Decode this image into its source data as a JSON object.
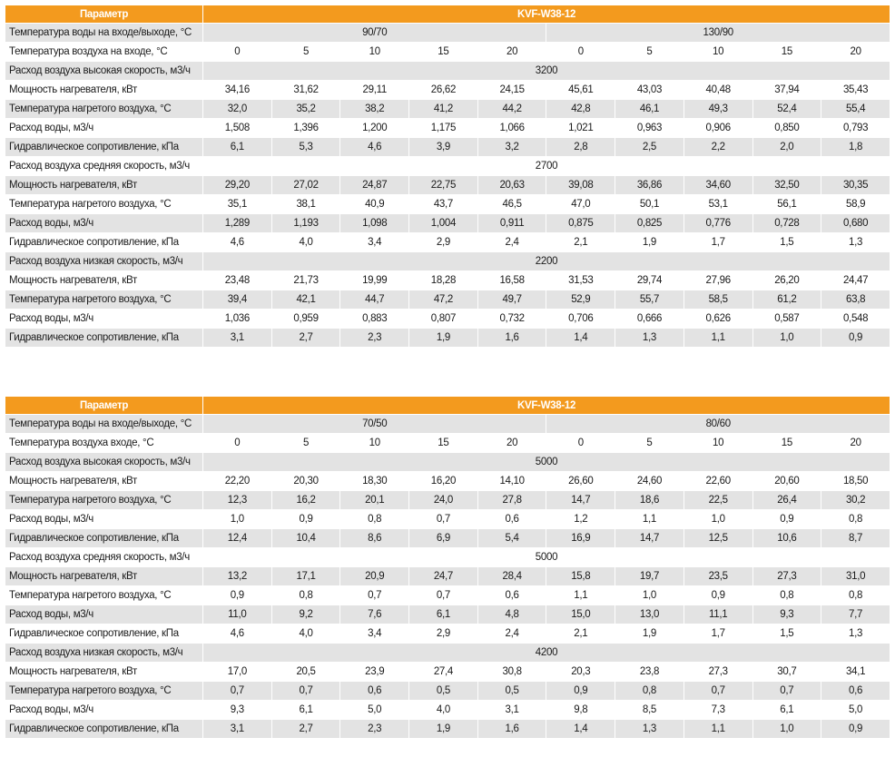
{
  "tables": [
    {
      "header": [
        "Параметр",
        "KVF-W38-12"
      ],
      "water_label": "Температура воды на входе/выходе, °C",
      "water_groups": [
        "90/70",
        "130/90"
      ],
      "air_label": "Температура воздуха на входе, °C",
      "air_temps": [
        "0",
        "5",
        "10",
        "15",
        "20",
        "0",
        "5",
        "10",
        "15",
        "20"
      ],
      "sections": [
        {
          "label": "Расход воздуха высокая скорость, м3/ч",
          "value": "3200",
          "rows": [
            {
              "label": "Мощность нагревателя, кВт",
              "values": [
                "34,16",
                "31,62",
                "29,11",
                "26,62",
                "24,15",
                "45,61",
                "43,03",
                "40,48",
                "37,94",
                "35,43"
              ]
            },
            {
              "label": "Температура нагретого воздуха, °C",
              "values": [
                "32,0",
                "35,2",
                "38,2",
                "41,2",
                "44,2",
                "42,8",
                "46,1",
                "49,3",
                "52,4",
                "55,4"
              ]
            },
            {
              "label": "Расход воды, м3/ч",
              "values": [
                "1,508",
                "1,396",
                "1,200",
                "1,175",
                "1,066",
                "1,021",
                "0,963",
                "0,906",
                "0,850",
                "0,793"
              ]
            },
            {
              "label": "Гидравлическое сопротивление, кПа",
              "values": [
                "6,1",
                "5,3",
                "4,6",
                "3,9",
                "3,2",
                "2,8",
                "2,5",
                "2,2",
                "2,0",
                "1,8"
              ]
            }
          ]
        },
        {
          "label": "Расход воздуха средняя скорость, м3/ч",
          "value": "2700",
          "rows": [
            {
              "label": "Мощность нагревателя, кВт",
              "values": [
                "29,20",
                "27,02",
                "24,87",
                "22,75",
                "20,63",
                "39,08",
                "36,86",
                "34,60",
                "32,50",
                "30,35"
              ]
            },
            {
              "label": "Температура нагретого воздуха, °C",
              "values": [
                "35,1",
                "38,1",
                "40,9",
                "43,7",
                "46,5",
                "47,0",
                "50,1",
                "53,1",
                "56,1",
                "58,9"
              ]
            },
            {
              "label": "Расход воды, м3/ч",
              "values": [
                "1,289",
                "1,193",
                "1,098",
                "1,004",
                "0,911",
                "0,875",
                "0,825",
                "0,776",
                "0,728",
                "0,680"
              ]
            },
            {
              "label": "Гидравлическое сопротивление, кПа",
              "values": [
                "4,6",
                "4,0",
                "3,4",
                "2,9",
                "2,4",
                "2,1",
                "1,9",
                "1,7",
                "1,5",
                "1,3"
              ]
            }
          ]
        },
        {
          "label": "Расход воздуха низкая скорость, м3/ч",
          "value": "2200",
          "rows": [
            {
              "label": "Мощность нагревателя, кВт",
              "values": [
                "23,48",
                "21,73",
                "19,99",
                "18,28",
                "16,58",
                "31,53",
                "29,74",
                "27,96",
                "26,20",
                "24,47"
              ]
            },
            {
              "label": "Температура нагретого воздуха, °C",
              "values": [
                "39,4",
                "42,1",
                "44,7",
                "47,2",
                "49,7",
                "52,9",
                "55,7",
                "58,5",
                "61,2",
                "63,8"
              ]
            },
            {
              "label": "Расход воды, м3/ч",
              "values": [
                "1,036",
                "0,959",
                "0,883",
                "0,807",
                "0,732",
                "0,706",
                "0,666",
                "0,626",
                "0,587",
                "0,548"
              ]
            },
            {
              "label": "Гидравлическое сопротивление, кПа",
              "values": [
                "3,1",
                "2,7",
                "2,3",
                "1,9",
                "1,6",
                "1,4",
                "1,3",
                "1,1",
                "1,0",
                "0,9"
              ]
            }
          ]
        }
      ]
    },
    {
      "header": [
        "Параметр",
        "KVF-W38-12"
      ],
      "water_label": "Температура воды на входе/выходе, °C",
      "water_groups": [
        "70/50",
        "80/60"
      ],
      "air_label": "Температура воздуха входе, °C",
      "air_temps": [
        "0",
        "5",
        "10",
        "15",
        "20",
        "0",
        "5",
        "10",
        "15",
        "20"
      ],
      "sections": [
        {
          "label": "Расход воздуха высокая скорость, м3/ч",
          "value": "5000",
          "rows": [
            {
              "label": "Мощность нагревателя, кВт",
              "values": [
                "22,20",
                "20,30",
                "18,30",
                "16,20",
                "14,10",
                "26,60",
                "24,60",
                "22,60",
                "20,60",
                "18,50"
              ]
            },
            {
              "label": "Температура нагретого воздуха, °C",
              "values": [
                "12,3",
                "16,2",
                "20,1",
                "24,0",
                "27,8",
                "14,7",
                "18,6",
                "22,5",
                "26,4",
                "30,2"
              ]
            },
            {
              "label": "Расход воды, м3/ч",
              "values": [
                "1,0",
                "0,9",
                "0,8",
                "0,7",
                "0,6",
                "1,2",
                "1,1",
                "1,0",
                "0,9",
                "0,8"
              ]
            },
            {
              "label": "Гидравлическое сопротивление, кПа",
              "values": [
                "12,4",
                "10,4",
                "8,6",
                "6,9",
                "5,4",
                "16,9",
                "14,7",
                "12,5",
                "10,6",
                "8,7"
              ]
            }
          ]
        },
        {
          "label": "Расход воздуха средняя скорость, м3/ч",
          "value": "5000",
          "rows": [
            {
              "label": "Мощность нагревателя, кВт",
              "values": [
                "13,2",
                "17,1",
                "20,9",
                "24,7",
                "28,4",
                "15,8",
                "19,7",
                "23,5",
                "27,3",
                "31,0"
              ]
            },
            {
              "label": "Температура нагретого воздуха, °C",
              "values": [
                "0,9",
                "0,8",
                "0,7",
                "0,7",
                "0,6",
                "1,1",
                "1,0",
                "0,9",
                "0,8",
                "0,8"
              ]
            },
            {
              "label": "Расход воды, м3/ч",
              "values": [
                "11,0",
                "9,2",
                "7,6",
                "6,1",
                "4,8",
                "15,0",
                "13,0",
                "11,1",
                "9,3",
                "7,7"
              ]
            },
            {
              "label": "Гидравлическое сопротивление, кПа",
              "values": [
                "4,6",
                "4,0",
                "3,4",
                "2,9",
                "2,4",
                "2,1",
                "1,9",
                "1,7",
                "1,5",
                "1,3"
              ]
            }
          ]
        },
        {
          "label": "Расход воздуха низкая скорость, м3/ч",
          "value": "4200",
          "rows": [
            {
              "label": "Мощность нагревателя, кВт",
              "values": [
                "17,0",
                "20,5",
                "23,9",
                "27,4",
                "30,8",
                "20,3",
                "23,8",
                "27,3",
                "30,7",
                "34,1"
              ]
            },
            {
              "label": "Температура нагретого воздуха, °C",
              "values": [
                "0,7",
                "0,7",
                "0,6",
                "0,5",
                "0,5",
                "0,9",
                "0,8",
                "0,7",
                "0,7",
                "0,6"
              ]
            },
            {
              "label": "Расход воды, м3/ч",
              "values": [
                "9,3",
                "6,1",
                "5,0",
                "4,0",
                "3,1",
                "9,8",
                "8,5",
                "7,3",
                "6,1",
                "5,0"
              ]
            },
            {
              "label": "Гидравлическое сопротивление, кПа",
              "values": [
                "3,1",
                "2,7",
                "2,3",
                "1,9",
                "1,6",
                "1,4",
                "1,3",
                "1,1",
                "1,0",
                "0,9"
              ]
            }
          ]
        }
      ]
    }
  ]
}
